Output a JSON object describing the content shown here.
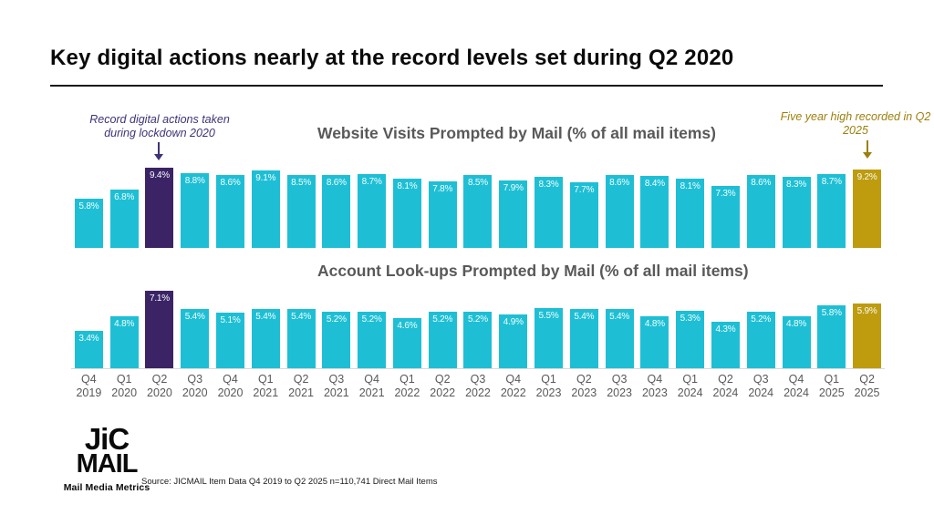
{
  "page": {
    "title": "Key digital actions nearly at the record levels set during Q2 2020"
  },
  "colors": {
    "bar_teal": "#1ebfd5",
    "bar_purple": "#3b2365",
    "bar_gold": "#bf9b0e",
    "annotation_purple": "#3f3376",
    "annotation_gold": "#9c7f0d",
    "chart_title_gray": "#595959",
    "axis_label_gray": "#595959",
    "axis_line": "#d9d9d9"
  },
  "annotations": {
    "lockdown": {
      "text": "Record digital actions taken during lockdown 2020"
    },
    "five_year_high": {
      "text": "Five year high recorded in Q2 2025"
    }
  },
  "chart_data": [
    {
      "type": "bar",
      "title": "Website Visits Prompted by Mail (% of all mail items)",
      "categories": [
        "Q4 2019",
        "Q1 2020",
        "Q2 2020",
        "Q3 2020",
        "Q4 2020",
        "Q1 2021",
        "Q2 2021",
        "Q3 2021",
        "Q4 2021",
        "Q1 2022",
        "Q2 2022",
        "Q3 2022",
        "Q4 2022",
        "Q1 2023",
        "Q2 2023",
        "Q3 2023",
        "Q4 2023",
        "Q1 2024",
        "Q2 2024",
        "Q3 2024",
        "Q4 2024",
        "Q1 2025",
        "Q2 2025"
      ],
      "values": [
        5.8,
        6.8,
        9.4,
        8.8,
        8.6,
        9.1,
        8.5,
        8.6,
        8.7,
        8.1,
        7.8,
        8.5,
        7.9,
        8.3,
        7.7,
        8.6,
        8.4,
        8.1,
        7.3,
        8.6,
        8.3,
        8.7,
        9.2
      ],
      "value_suffix": "%",
      "highlight_purple_index": 2,
      "highlight_gold_index": 22,
      "ylim": [
        0,
        9.4
      ],
      "grid": false,
      "legend": "none"
    },
    {
      "type": "bar",
      "title": "Account Look-ups Prompted by Mail (% of all mail items)",
      "categories": [
        "Q4 2019",
        "Q1 2020",
        "Q2 2020",
        "Q3 2020",
        "Q4 2020",
        "Q1 2021",
        "Q2 2021",
        "Q3 2021",
        "Q4 2021",
        "Q1 2022",
        "Q2 2022",
        "Q3 2022",
        "Q4 2022",
        "Q1 2023",
        "Q2 2023",
        "Q3 2023",
        "Q4 2023",
        "Q1 2024",
        "Q2 2024",
        "Q3 2024",
        "Q4 2024",
        "Q1 2025",
        "Q2 2025"
      ],
      "values": [
        3.4,
        4.8,
        7.1,
        5.4,
        5.1,
        5.4,
        5.4,
        5.2,
        5.2,
        4.6,
        5.2,
        5.2,
        4.9,
        5.5,
        5.4,
        5.4,
        4.8,
        5.3,
        4.3,
        5.2,
        4.8,
        5.8,
        5.9
      ],
      "value_suffix": "%",
      "highlight_purple_index": 2,
      "highlight_gold_index": 22,
      "ylim": [
        0,
        7.1
      ],
      "grid": false,
      "legend": "none"
    }
  ],
  "footer": {
    "logo_line1": "JiC",
    "logo_line2": "MAIL",
    "logo_tagline": "Mail Media Metrics",
    "source": "Source: JICMAIL Item Data Q4 2019 to Q2 2025 n=110,741 Direct Mail Items"
  }
}
